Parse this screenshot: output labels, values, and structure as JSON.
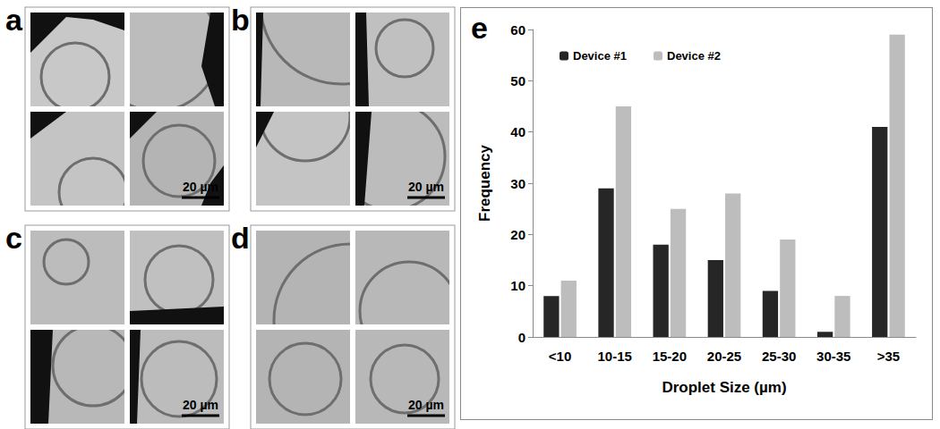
{
  "panels": [
    {
      "label": "a",
      "scale_bar": "20 µm"
    },
    {
      "label": "b",
      "scale_bar": "20 µm"
    },
    {
      "label": "c",
      "scale_bar": "20 µm"
    },
    {
      "label": "d",
      "scale_bar": "20 µm"
    }
  ],
  "chart_data": {
    "panel_label": "e",
    "type": "bar",
    "categories": [
      "<10",
      "10-15",
      "15-20",
      "20-25",
      "25-30",
      "30-35",
      ">35"
    ],
    "series": [
      {
        "name": "Device #1",
        "color": "#262626",
        "values": [
          8,
          29,
          18,
          15,
          9,
          1,
          41
        ]
      },
      {
        "name": "Device #2",
        "color": "#bdbdbd",
        "values": [
          11,
          45,
          25,
          28,
          19,
          8,
          59
        ]
      }
    ],
    "x_label": "Droplet Size (µm)",
    "y_label": "Frequency",
    "ylim": [
      0,
      60
    ],
    "yticks": [
      0,
      10,
      20,
      30,
      40,
      50,
      60
    ],
    "legend": "upper left",
    "grid": false
  }
}
